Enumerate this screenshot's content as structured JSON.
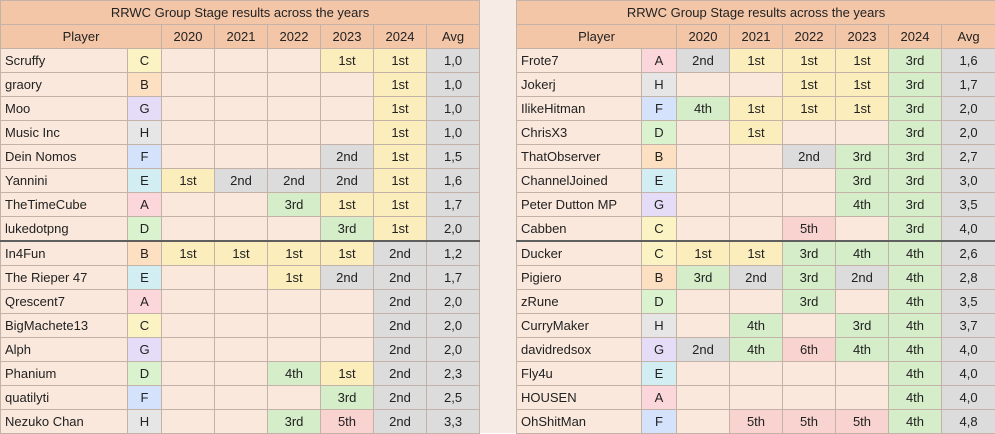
{
  "title": "RRWC Group Stage results across the years",
  "headers": [
    "Player",
    "2020",
    "2021",
    "2022",
    "2023",
    "2024",
    "Avg"
  ],
  "colors": {
    "header": "#f4c6a8",
    "cell": "#fae8dc",
    "first": "#fbeebc",
    "second": "#dcdcdc",
    "third_fourth": "#d5edc8",
    "fifth_sixth": "#f9d3cf"
  },
  "tables": [
    {
      "rows": [
        {
          "player": "Scruffy",
          "group": "C",
          "results": [
            "",
            "",
            "",
            "1st",
            "1st"
          ],
          "avg": "1,0"
        },
        {
          "player": "graory",
          "group": "B",
          "results": [
            "",
            "",
            "",
            "",
            "1st"
          ],
          "avg": "1,0"
        },
        {
          "player": "Moo",
          "group": "G",
          "results": [
            "",
            "",
            "",
            "",
            "1st"
          ],
          "avg": "1,0"
        },
        {
          "player": "Music Inc",
          "group": "H",
          "results": [
            "",
            "",
            "",
            "",
            "1st"
          ],
          "avg": "1,0"
        },
        {
          "player": "Dein Nomos",
          "group": "F",
          "results": [
            "",
            "",
            "",
            "2nd",
            "1st"
          ],
          "avg": "1,5"
        },
        {
          "player": "Yannini",
          "group": "E",
          "results": [
            "1st",
            "2nd",
            "2nd",
            "2nd",
            "1st"
          ],
          "avg": "1,6"
        },
        {
          "player": "TheTimeCube",
          "group": "A",
          "results": [
            "",
            "",
            "3rd",
            "1st",
            "1st"
          ],
          "avg": "1,7"
        },
        {
          "player": "lukedotpng",
          "group": "D",
          "results": [
            "",
            "",
            "",
            "3rd",
            "1st"
          ],
          "avg": "2,0"
        },
        {
          "player": "In4Fun",
          "group": "B",
          "results": [
            "1st",
            "1st",
            "1st",
            "1st",
            "2nd"
          ],
          "avg": "1,2"
        },
        {
          "player": "The Rieper 47",
          "group": "E",
          "results": [
            "",
            "",
            "1st",
            "2nd",
            "2nd"
          ],
          "avg": "1,7"
        },
        {
          "player": "Qrescent7",
          "group": "A",
          "results": [
            "",
            "",
            "",
            "",
            "2nd"
          ],
          "avg": "2,0"
        },
        {
          "player": "BigMachete13",
          "group": "C",
          "results": [
            "",
            "",
            "",
            "",
            "2nd"
          ],
          "avg": "2,0"
        },
        {
          "player": "Alph",
          "group": "G",
          "results": [
            "",
            "",
            "",
            "",
            "2nd"
          ],
          "avg": "2,0"
        },
        {
          "player": "Phanium",
          "group": "D",
          "results": [
            "",
            "",
            "4th",
            "1st",
            "2nd"
          ],
          "avg": "2,3"
        },
        {
          "player": "quatilyti",
          "group": "F",
          "results": [
            "",
            "",
            "",
            "3rd",
            "2nd"
          ],
          "avg": "2,5"
        },
        {
          "player": "Nezuko Chan",
          "group": "H",
          "results": [
            "",
            "",
            "3rd",
            "5th",
            "2nd"
          ],
          "avg": "3,3"
        }
      ]
    },
    {
      "rows": [
        {
          "player": "Frote7",
          "group": "A",
          "results": [
            "2nd",
            "1st",
            "1st",
            "1st",
            "3rd"
          ],
          "avg": "1,6"
        },
        {
          "player": "Jokerj",
          "group": "H",
          "results": [
            "",
            "",
            "1st",
            "1st",
            "3rd"
          ],
          "avg": "1,7"
        },
        {
          "player": "IlikeHitman",
          "group": "F",
          "results": [
            "4th",
            "1st",
            "1st",
            "1st",
            "3rd"
          ],
          "avg": "2,0"
        },
        {
          "player": "ChrisX3",
          "group": "D",
          "results": [
            "",
            "1st",
            "",
            "",
            "3rd"
          ],
          "avg": "2,0"
        },
        {
          "player": "ThatObserver",
          "group": "B",
          "results": [
            "",
            "",
            "2nd",
            "3rd",
            "3rd"
          ],
          "avg": "2,7"
        },
        {
          "player": "ChannelJoined",
          "group": "E",
          "results": [
            "",
            "",
            "",
            "3rd",
            "3rd"
          ],
          "avg": "3,0"
        },
        {
          "player": "Peter Dutton MP",
          "group": "G",
          "results": [
            "",
            "",
            "",
            "4th",
            "3rd"
          ],
          "avg": "3,5"
        },
        {
          "player": "Cabben",
          "group": "C",
          "results": [
            "",
            "",
            "5th",
            "",
            "3rd"
          ],
          "avg": "4,0"
        },
        {
          "player": "Ducker",
          "group": "C",
          "results": [
            "1st",
            "1st",
            "3rd",
            "4th",
            "4th"
          ],
          "avg": "2,6"
        },
        {
          "player": "Pigiero",
          "group": "B",
          "results": [
            "3rd",
            "2nd",
            "3rd",
            "2nd",
            "4th"
          ],
          "avg": "2,8"
        },
        {
          "player": "zRune",
          "group": "D",
          "results": [
            "",
            "",
            "3rd",
            "",
            "4th"
          ],
          "avg": "3,5"
        },
        {
          "player": "CurryMaker",
          "group": "H",
          "results": [
            "",
            "4th",
            "",
            "3rd",
            "4th"
          ],
          "avg": "3,7"
        },
        {
          "player": "davidredsox",
          "group": "G",
          "results": [
            "2nd",
            "4th",
            "6th",
            "4th",
            "4th"
          ],
          "avg": "4,0"
        },
        {
          "player": "Fly4u",
          "group": "E",
          "results": [
            "",
            "",
            "",
            "",
            "4th"
          ],
          "avg": "4,0"
        },
        {
          "player": "HOUSEN",
          "group": "A",
          "results": [
            "",
            "",
            "",
            "",
            "4th"
          ],
          "avg": "4,0"
        },
        {
          "player": "OhShitMan",
          "group": "F",
          "results": [
            "",
            "5th",
            "5th",
            "5th",
            "4th"
          ],
          "avg": "4,8"
        }
      ]
    }
  ]
}
